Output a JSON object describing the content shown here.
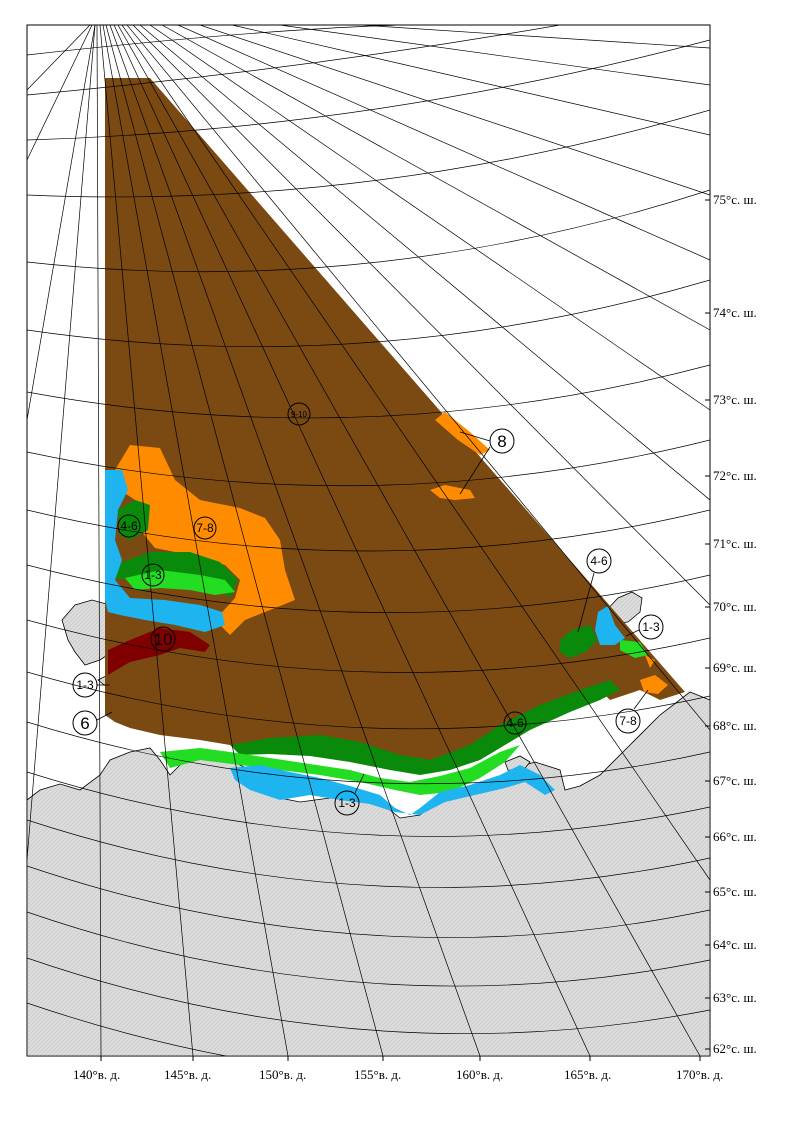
{
  "colors": {
    "land": "#dcdcdc",
    "grid": "#000000",
    "ice_9_10": "#7a4a12",
    "ice_10_fast": "#800000",
    "ice_7_8": "#ff8c00",
    "ice_4_6": "#0a8a0a",
    "ice_1_3": "#22dd22",
    "nilas": "#1eb4f0"
  },
  "latitude_labels": [
    {
      "text": "75°с. ш."
    },
    {
      "text": "74°с. ш."
    },
    {
      "text": "73°с. ш."
    },
    {
      "text": "72°с. ш."
    },
    {
      "text": "71°с. ш."
    },
    {
      "text": "70°с. ш."
    },
    {
      "text": "69°с. ш."
    },
    {
      "text": "68°с. ш."
    },
    {
      "text": "67°с. ш."
    },
    {
      "text": "66°с. ш."
    },
    {
      "text": "65°с. ш."
    },
    {
      "text": "64°с. ш."
    },
    {
      "text": "63°с. ш."
    },
    {
      "text": "62°с. ш."
    }
  ],
  "longitude_labels": [
    {
      "text": "140°в. д."
    },
    {
      "text": "145°в. д."
    },
    {
      "text": "150°в. д."
    },
    {
      "text": "155°в. д."
    },
    {
      "text": "160°в. д."
    },
    {
      "text": "165°в. д."
    },
    {
      "text": "170°в. д."
    }
  ],
  "ice_labels": [
    {
      "text": "9-10",
      "style": "small"
    },
    {
      "text": "8",
      "style": "big"
    },
    {
      "text": "7-8",
      "style": "normal"
    },
    {
      "text": "4-6",
      "style": "normal"
    },
    {
      "text": "1-3",
      "style": "normal"
    },
    {
      "text": "10",
      "style": "big"
    },
    {
      "text": "1-3",
      "style": "normal"
    },
    {
      "text": "6",
      "style": "big"
    },
    {
      "text": "4-6",
      "style": "normal"
    },
    {
      "text": "1-3",
      "style": "normal"
    },
    {
      "text": "7-8",
      "style": "normal"
    },
    {
      "text": "4-6",
      "style": "normal"
    },
    {
      "text": "1-3",
      "style": "normal"
    }
  ]
}
